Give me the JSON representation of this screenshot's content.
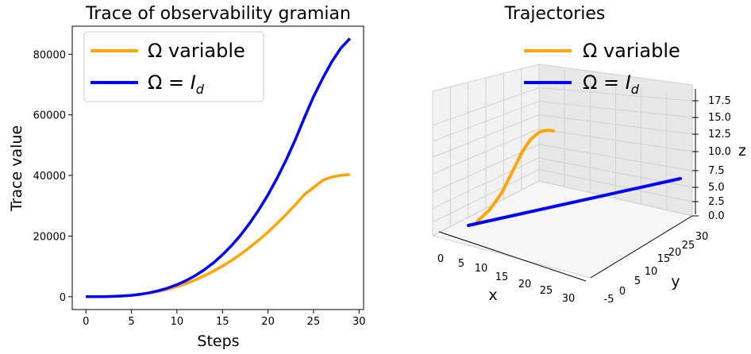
{
  "chart_data": [
    {
      "type": "line",
      "title": "Trace of observability gramian",
      "xlabel": "Steps",
      "ylabel": "Trace value",
      "xlim": [
        -1.5,
        30.5
      ],
      "ylim": [
        -4250,
        89250
      ],
      "xticks": [
        0,
        5,
        10,
        15,
        20,
        25,
        30
      ],
      "yticks": [
        0,
        20000,
        40000,
        60000,
        80000
      ],
      "grid": false,
      "legend_position": "top-left",
      "series": [
        {
          "name": "Ω variable",
          "color": "#ffa500",
          "x": [
            0,
            1,
            2,
            3,
            4,
            5,
            6,
            7,
            8,
            9,
            10,
            11,
            12,
            13,
            14,
            15,
            16,
            17,
            18,
            19,
            20,
            21,
            22,
            23,
            24,
            25,
            26,
            27,
            28,
            29
          ],
          "y": [
            0,
            5,
            30,
            100,
            230,
            450,
            770,
            1200,
            1770,
            2470,
            3330,
            4340,
            5520,
            6870,
            8390,
            10090,
            11970,
            14040,
            16290,
            18730,
            21350,
            24160,
            27160,
            30350,
            33730,
            36000,
            38400,
            39500,
            40000,
            40300
          ]
        },
        {
          "name": "Ω = I_d",
          "color": "#0000ff",
          "x": [
            0,
            1,
            2,
            3,
            4,
            5,
            6,
            7,
            8,
            9,
            10,
            11,
            12,
            13,
            14,
            15,
            16,
            17,
            18,
            19,
            20,
            21,
            22,
            23,
            24,
            25,
            26,
            27,
            28,
            29
          ],
          "y": [
            0,
            5,
            30,
            100,
            230,
            450,
            800,
            1300,
            1980,
            2850,
            3950,
            5300,
            6930,
            8880,
            11160,
            13820,
            16870,
            20350,
            24280,
            28700,
            33630,
            39100,
            45150,
            51800,
            59080,
            66000,
            72000,
            77500,
            82000,
            85200
          ]
        }
      ],
      "legend": {
        "var_label": "Ω variable",
        "id_prefix": "Ω = ",
        "id_italic": "I",
        "id_sub": "d"
      }
    },
    {
      "type": "line3d",
      "title": "Trajectories",
      "xlabel": "x",
      "ylabel": "y",
      "zlabel": "z",
      "xticks": [
        0,
        5,
        10,
        15,
        20,
        25,
        30
      ],
      "yticks": [
        -5,
        0,
        5,
        10,
        15,
        20,
        25,
        30
      ],
      "zticks": [
        "0.0",
        "2.5",
        "5.0",
        "7.5",
        "10.0",
        "12.5",
        "15.0",
        "17.5"
      ],
      "grid": true,
      "legend_position": "top-center",
      "series": [
        {
          "name": "Ω variable",
          "color": "#ffa500",
          "points": [
            [
              2,
              -4,
              0.5
            ],
            [
              4,
              -3,
              1.5
            ],
            [
              6,
              -2,
              4
            ],
            [
              8,
              -1,
              7.5
            ],
            [
              10,
              0,
              11
            ],
            [
              12,
              1,
              13.5
            ],
            [
              14,
              2,
              15
            ],
            [
              16,
              2.5,
              15.6
            ],
            [
              17.5,
              3,
              15.7
            ]
          ]
        },
        {
          "name": "Ω = I_d",
          "color": "#0000ff",
          "points": [
            [
              0,
              0,
              0
            ],
            [
              29,
              29,
              0
            ]
          ]
        }
      ],
      "legend": {
        "var_label": "Ω variable",
        "id_prefix": "Ω = ",
        "id_italic": "I",
        "id_sub": "d"
      }
    }
  ]
}
